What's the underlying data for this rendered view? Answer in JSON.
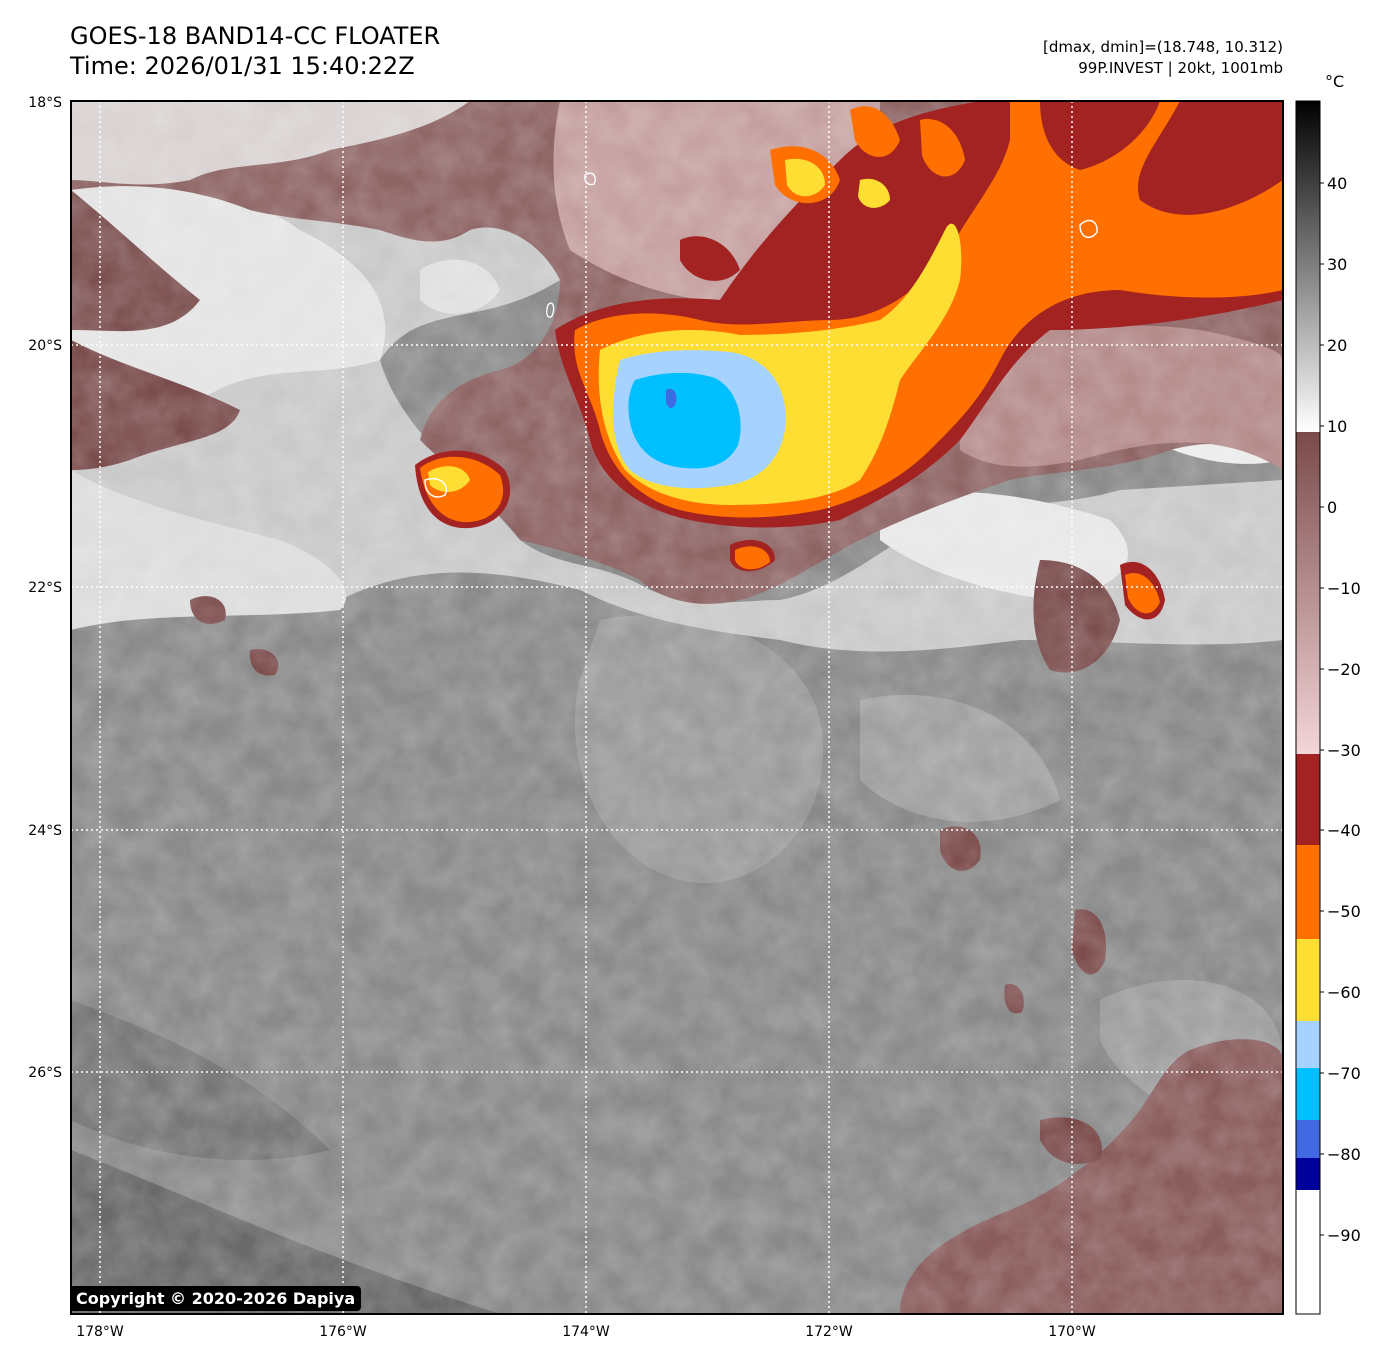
{
  "header": {
    "title_line1": "GOES-18 BAND14-CC FLOATER",
    "title_line2": "Time: 2026/01/31 15:40:22Z",
    "range_info": "[dmax, dmin]=(18.748, 10.312)",
    "storm_info": "99P.INVEST | 20kt, 1001mb"
  },
  "map": {
    "lat_labels": [
      "18°S",
      "20°S",
      "22°S",
      "24°S",
      "26°S"
    ],
    "lon_labels": [
      "178°W",
      "176°W",
      "174°W",
      "172°W",
      "170°W"
    ],
    "gridlines": "dotted white"
  },
  "colorbar": {
    "unit": "°C",
    "ticks": [
      "40",
      "30",
      "20",
      "10",
      "0",
      "−10",
      "−20",
      "−30",
      "−40",
      "−50",
      "−60",
      "−70",
      "−80",
      "−90"
    ],
    "color_stops": [
      {
        "from": 50,
        "to": 10,
        "scale": "black-to-white grayscale"
      },
      {
        "from": 8,
        "to": -31,
        "scale": "brown-to-pink",
        "colors": [
          "#7a4a4a",
          "#f3d6d8"
        ]
      },
      {
        "from": -34,
        "to": -42,
        "color": "#a32222"
      },
      {
        "from": -42,
        "to": -54,
        "color": "#ff7000"
      },
      {
        "from": -54,
        "to": -64,
        "color": "#ffde33"
      },
      {
        "from": -64,
        "to": -70,
        "color": "#a5d2ff"
      },
      {
        "from": -70,
        "to": -76,
        "color": "#00bfff"
      },
      {
        "from": -76,
        "to": -81,
        "color": "#4169e1"
      },
      {
        "from": -81,
        "to": -85,
        "color": "#00009b"
      },
      {
        "from": -85,
        "to": -100,
        "color": "#ffffff"
      }
    ]
  },
  "footer": {
    "copyright": "Copyright © 2020-2026 Dapiya"
  }
}
